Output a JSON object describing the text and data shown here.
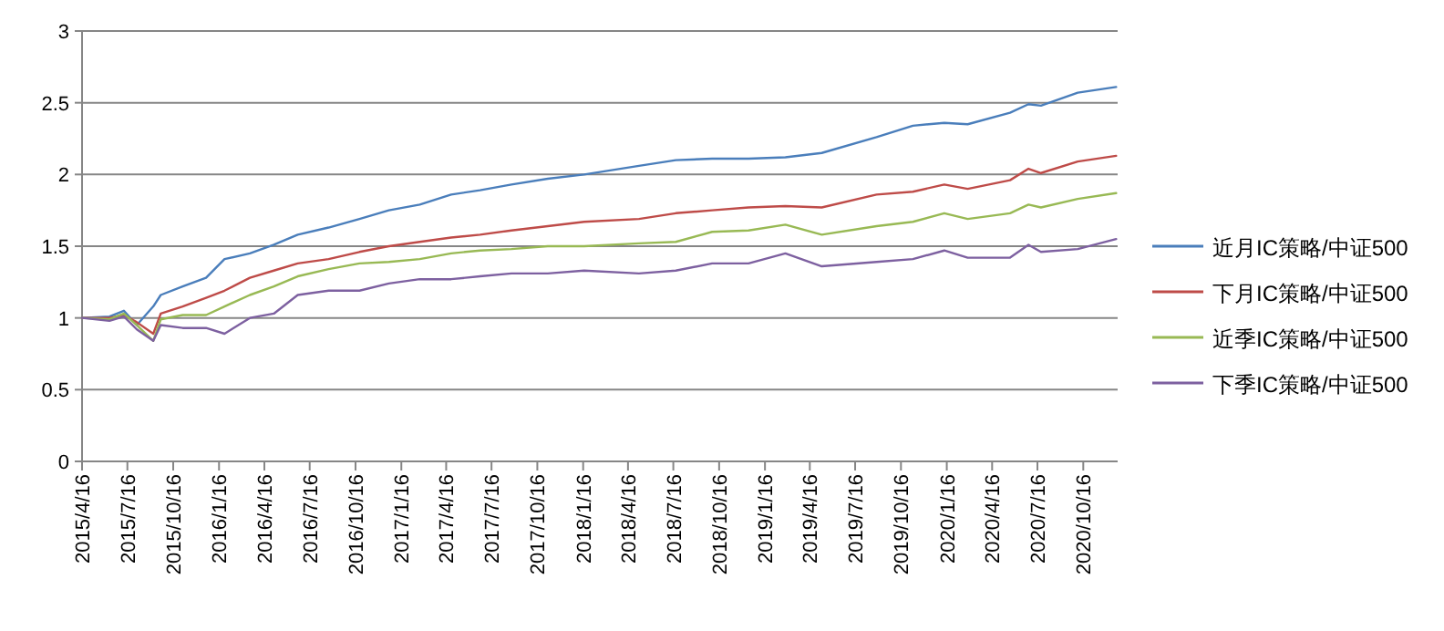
{
  "chart_data": {
    "type": "line",
    "grid": "y",
    "legend": "right",
    "line_style": "solid",
    "marker": "none",
    "x": [
      "2015-04-16",
      "2015-06-10",
      "2015-07-09",
      "2015-08-04",
      "2015-09-06",
      "2015-09-21",
      "2015-11-04",
      "2015-12-21",
      "2016-01-27",
      "2016-03-18",
      "2016-05-05",
      "2016-06-22",
      "2016-08-23",
      "2016-10-24",
      "2016-12-22",
      "2017-02-22",
      "2017-04-26",
      "2017-06-23",
      "2017-08-25",
      "2017-11-06",
      "2018-01-18",
      "2018-05-08",
      "2018-07-21",
      "2018-10-02",
      "2018-12-14",
      "2019-02-26",
      "2019-05-10",
      "2019-08-28",
      "2019-11-09",
      "2020-01-11",
      "2020-02-27",
      "2020-05-22",
      "2020-06-28",
      "2020-07-23",
      "2020-10-05",
      "2020-12-21"
    ],
    "series": [
      {
        "name": "近月IC策略/中证500",
        "color": "#4a7ebb",
        "values": [
          1.0,
          1.01,
          1.05,
          0.95,
          1.08,
          1.16,
          1.22,
          1.28,
          1.41,
          1.45,
          1.51,
          1.58,
          1.63,
          1.69,
          1.75,
          1.79,
          1.86,
          1.89,
          1.93,
          1.97,
          2.0,
          2.06,
          2.1,
          2.11,
          2.11,
          2.12,
          2.15,
          2.26,
          2.34,
          2.36,
          2.35,
          2.43,
          2.49,
          2.48,
          2.57,
          2.61
        ]
      },
      {
        "name": "下月IC策略/中证500",
        "color": "#be4b48",
        "values": [
          1.0,
          1.0,
          1.02,
          0.97,
          0.89,
          1.03,
          1.08,
          1.14,
          1.19,
          1.28,
          1.33,
          1.38,
          1.41,
          1.46,
          1.5,
          1.53,
          1.56,
          1.58,
          1.61,
          1.64,
          1.67,
          1.69,
          1.73,
          1.75,
          1.77,
          1.78,
          1.77,
          1.86,
          1.88,
          1.93,
          1.9,
          1.96,
          2.04,
          2.01,
          2.09,
          2.13
        ]
      },
      {
        "name": "近季IC策略/中证500",
        "color": "#98b954",
        "values": [
          1.0,
          0.99,
          1.03,
          0.95,
          0.84,
          0.99,
          1.02,
          1.02,
          1.08,
          1.16,
          1.22,
          1.29,
          1.34,
          1.38,
          1.39,
          1.41,
          1.45,
          1.47,
          1.48,
          1.5,
          1.5,
          1.52,
          1.53,
          1.6,
          1.61,
          1.65,
          1.58,
          1.64,
          1.67,
          1.73,
          1.69,
          1.73,
          1.79,
          1.77,
          1.83,
          1.87
        ]
      },
      {
        "name": "下季IC策略/中证500",
        "color": "#7d60a0",
        "values": [
          1.0,
          0.98,
          1.01,
          0.92,
          0.84,
          0.95,
          0.93,
          0.93,
          0.89,
          1.0,
          1.03,
          1.16,
          1.19,
          1.19,
          1.24,
          1.27,
          1.27,
          1.29,
          1.31,
          1.31,
          1.33,
          1.31,
          1.33,
          1.38,
          1.38,
          1.45,
          1.36,
          1.39,
          1.41,
          1.47,
          1.42,
          1.42,
          1.51,
          1.46,
          1.48,
          1.55
        ]
      }
    ],
    "xlim": [
      "2015-04-16",
      "2020-12-24"
    ],
    "xticks": [
      {
        "value": "2015-04-16",
        "label": "2015/4/16"
      },
      {
        "value": "2015-07-16",
        "label": "2015/7/16"
      },
      {
        "value": "2015-10-16",
        "label": "2015/10/16"
      },
      {
        "value": "2016-01-16",
        "label": "2016/1/16"
      },
      {
        "value": "2016-04-16",
        "label": "2016/4/16"
      },
      {
        "value": "2016-07-16",
        "label": "2016/7/16"
      },
      {
        "value": "2016-10-16",
        "label": "2016/10/16"
      },
      {
        "value": "2017-01-16",
        "label": "2017/1/16"
      },
      {
        "value": "2017-04-16",
        "label": "2017/4/16"
      },
      {
        "value": "2017-07-16",
        "label": "2017/7/16"
      },
      {
        "value": "2017-10-16",
        "label": "2017/10/16"
      },
      {
        "value": "2018-01-16",
        "label": "2018/1/16"
      },
      {
        "value": "2018-04-16",
        "label": "2018/4/16"
      },
      {
        "value": "2018-07-16",
        "label": "2018/7/16"
      },
      {
        "value": "2018-10-16",
        "label": "2018/10/16"
      },
      {
        "value": "2019-01-16",
        "label": "2019/1/16"
      },
      {
        "value": "2019-04-16",
        "label": "2019/4/16"
      },
      {
        "value": "2019-07-16",
        "label": "2019/7/16"
      },
      {
        "value": "2019-10-16",
        "label": "2019/10/16"
      },
      {
        "value": "2020-01-16",
        "label": "2020/1/16"
      },
      {
        "value": "2020-04-16",
        "label": "2020/4/16"
      },
      {
        "value": "2020-07-16",
        "label": "2020/7/16"
      },
      {
        "value": "2020-10-16",
        "label": "2020/10/16"
      }
    ],
    "ylim": [
      0,
      3
    ],
    "yticks": [
      0,
      0.5,
      1,
      1.5,
      2,
      2.5,
      3
    ]
  }
}
